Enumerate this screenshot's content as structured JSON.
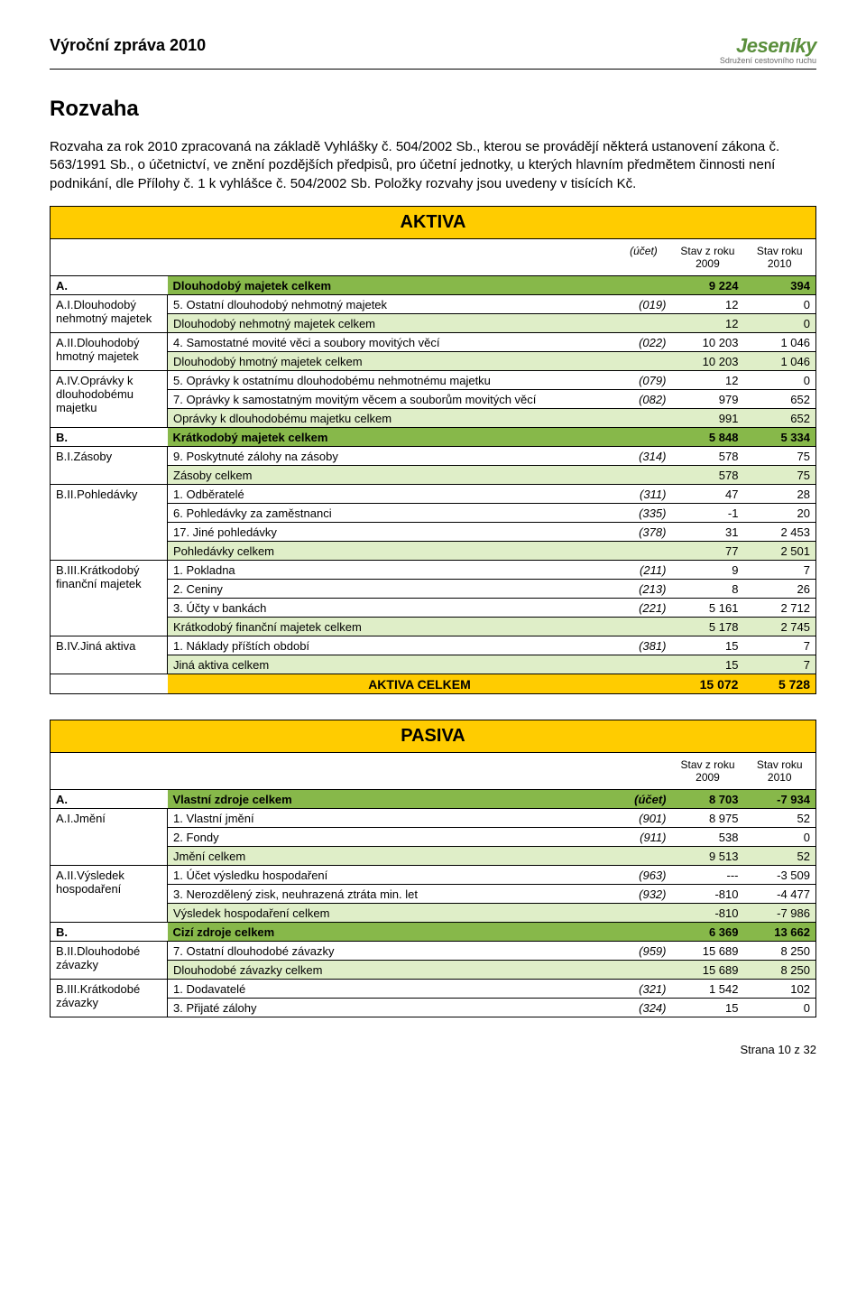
{
  "header": {
    "doc_title": "Výroční zpráva 2010",
    "logo_main": "Jeseníky",
    "logo_sub": "Sdružení cestovního ruchu"
  },
  "section_title": "Rozvaha",
  "intro": "Rozvaha za rok 2010 zpracovaná na základě Vyhlášky č. 504/2002 Sb., kterou se provádějí některá ustanovení zákona č. 563/1991 Sb., o účetnictví, ve znění pozdějších předpisů, pro účetní jednotky, u kterých hlavním předmětem činnosti není podnikání, dle Přílohy č. 1 k vyhlášce č. 504/2002 Sb. Položky rozvahy jsou uvedeny v tisících Kč.",
  "colhead": {
    "acct": "(účet)",
    "c2009": "Stav z roku 2009",
    "c2010": "Stav roku 2010"
  },
  "aktiva": {
    "banner": "AKTIVA",
    "A": {
      "code": "A.",
      "label": "Dlouhodobý majetek celkem",
      "v1": "9 224",
      "v2": "394"
    },
    "AI_label": "A.I.Dlouhodobý nehmotný majetek",
    "AI_r1": {
      "desc": "5. Ostatní dlouhodobý nehmotný majetek",
      "acct": "(019)",
      "v1": "12",
      "v2": "0"
    },
    "AI_sub": {
      "desc": "Dlouhodobý nehmotný majetek celkem",
      "v1": "12",
      "v2": "0"
    },
    "AII_label": "A.II.Dlouhodobý hmotný majetek",
    "AII_r1": {
      "desc": "4. Samostatné movité věci a soubory movitých věcí",
      "acct": "(022)",
      "v1": "10 203",
      "v2": "1 046"
    },
    "AII_sub": {
      "desc": "Dlouhodobý hmotný majetek celkem",
      "v1": "10 203",
      "v2": "1 046"
    },
    "AIV_label": "A.IV.Oprávky k dlouhodobému majetku",
    "AIV_r1": {
      "desc": "5. Oprávky k ostatnímu dlouhodobému nehmotnému majetku",
      "acct": "(079)",
      "v1": "12",
      "v2": "0"
    },
    "AIV_r2": {
      "desc": "7. Oprávky k samostatným movitým věcem a souborům movitých věcí",
      "acct": "(082)",
      "v1": "979",
      "v2": "652"
    },
    "AIV_sub": {
      "desc": "Oprávky k dlouhodobému majetku celkem",
      "v1": "991",
      "v2": "652"
    },
    "B": {
      "code": "B.",
      "label": "Krátkodobý majetek celkem",
      "v1": "5 848",
      "v2": "5 334"
    },
    "BI_label": "B.I.Zásoby",
    "BI_r1": {
      "desc": "9. Poskytnuté zálohy na zásoby",
      "acct": "(314)",
      "v1": "578",
      "v2": "75"
    },
    "BI_sub": {
      "desc": "Zásoby celkem",
      "v1": "578",
      "v2": "75"
    },
    "BII_label": "B.II.Pohledávky",
    "BII_r1": {
      "desc": "1. Odběratelé",
      "acct": "(311)",
      "v1": "47",
      "v2": "28"
    },
    "BII_r2": {
      "desc": "6. Pohledávky za zaměstnanci",
      "acct": "(335)",
      "v1": "-1",
      "v2": "20"
    },
    "BII_r3": {
      "desc": "17. Jiné pohledávky",
      "acct": "(378)",
      "v1": "31",
      "v2": "2 453"
    },
    "BII_sub": {
      "desc": "Pohledávky celkem",
      "v1": "77",
      "v2": "2 501"
    },
    "BIII_label": "B.III.Krátkodobý finanční majetek",
    "BIII_r1": {
      "desc": "1. Pokladna",
      "acct": "(211)",
      "v1": "9",
      "v2": "7"
    },
    "BIII_r2": {
      "desc": "2. Ceniny",
      "acct": "(213)",
      "v1": "8",
      "v2": "26"
    },
    "BIII_r3": {
      "desc": "3. Účty v bankách",
      "acct": "(221)",
      "v1": "5 161",
      "v2": "2 712"
    },
    "BIII_sub": {
      "desc": "Krátkodobý finanční majetek celkem",
      "v1": "5 178",
      "v2": "2 745"
    },
    "BIV_label": "B.IV.Jiná aktiva",
    "BIV_r1": {
      "desc": "1. Náklady příštích období",
      "acct": "(381)",
      "v1": "15",
      "v2": "7"
    },
    "BIV_sub": {
      "desc": "Jiná aktiva celkem",
      "v1": "15",
      "v2": "7"
    },
    "total": {
      "label": "AKTIVA CELKEM",
      "v1": "15 072",
      "v2": "5 728"
    }
  },
  "pasiva": {
    "banner": "PASIVA",
    "A": {
      "code": "A.",
      "label": "Vlastní zdroje celkem",
      "acct": "(účet)",
      "v1": "8 703",
      "v2": "-7 934"
    },
    "AI_label": "A.I.Jmění",
    "AI_r1": {
      "desc": "1. Vlastní jmění",
      "acct": "(901)",
      "v1": "8 975",
      "v2": "52"
    },
    "AI_r2": {
      "desc": "2. Fondy",
      "acct": "(911)",
      "v1": "538",
      "v2": "0"
    },
    "AI_sub": {
      "desc": "Jmění celkem",
      "v1": "9 513",
      "v2": "52"
    },
    "AII_label": "A.II.Výsledek hospodaření",
    "AII_r1": {
      "desc": "1. Účet výsledku hospodaření",
      "acct": "(963)",
      "v1": "---",
      "v2": "-3 509"
    },
    "AII_r2": {
      "desc": "3. Nerozdělený zisk, neuhrazená ztráta min. let",
      "acct": "(932)",
      "v1": "-810",
      "v2": "-4 477"
    },
    "AII_sub": {
      "desc": "Výsledek hospodaření celkem",
      "v1": "-810",
      "v2": "-7 986"
    },
    "B": {
      "code": "B.",
      "label": "Cizí zdroje celkem",
      "v1": "6 369",
      "v2": "13 662"
    },
    "BII_label": "B.II.Dlouhodobé závazky",
    "BII_r1": {
      "desc": "7. Ostatní dlouhodobé závazky",
      "acct": "(959)",
      "v1": "15 689",
      "v2": "8 250"
    },
    "BII_sub": {
      "desc": "Dlouhodobé závazky celkem",
      "v1": "15 689",
      "v2": "8 250"
    },
    "BIII_label": "B.III.Krátkodobé závazky",
    "BIII_r1": {
      "desc": "1. Dodavatelé",
      "acct": "(321)",
      "v1": "1 542",
      "v2": "102"
    },
    "BIII_r2": {
      "desc": "3. Přijaté zálohy",
      "acct": "(324)",
      "v1": "15",
      "v2": "0"
    }
  },
  "footer": {
    "page_text": "Strana 10 z 32"
  },
  "colors": {
    "banner": "#ffcc00",
    "section": "#87b84a",
    "subtotal": "#dfeec8",
    "logo_green": "#5a8f3c"
  }
}
